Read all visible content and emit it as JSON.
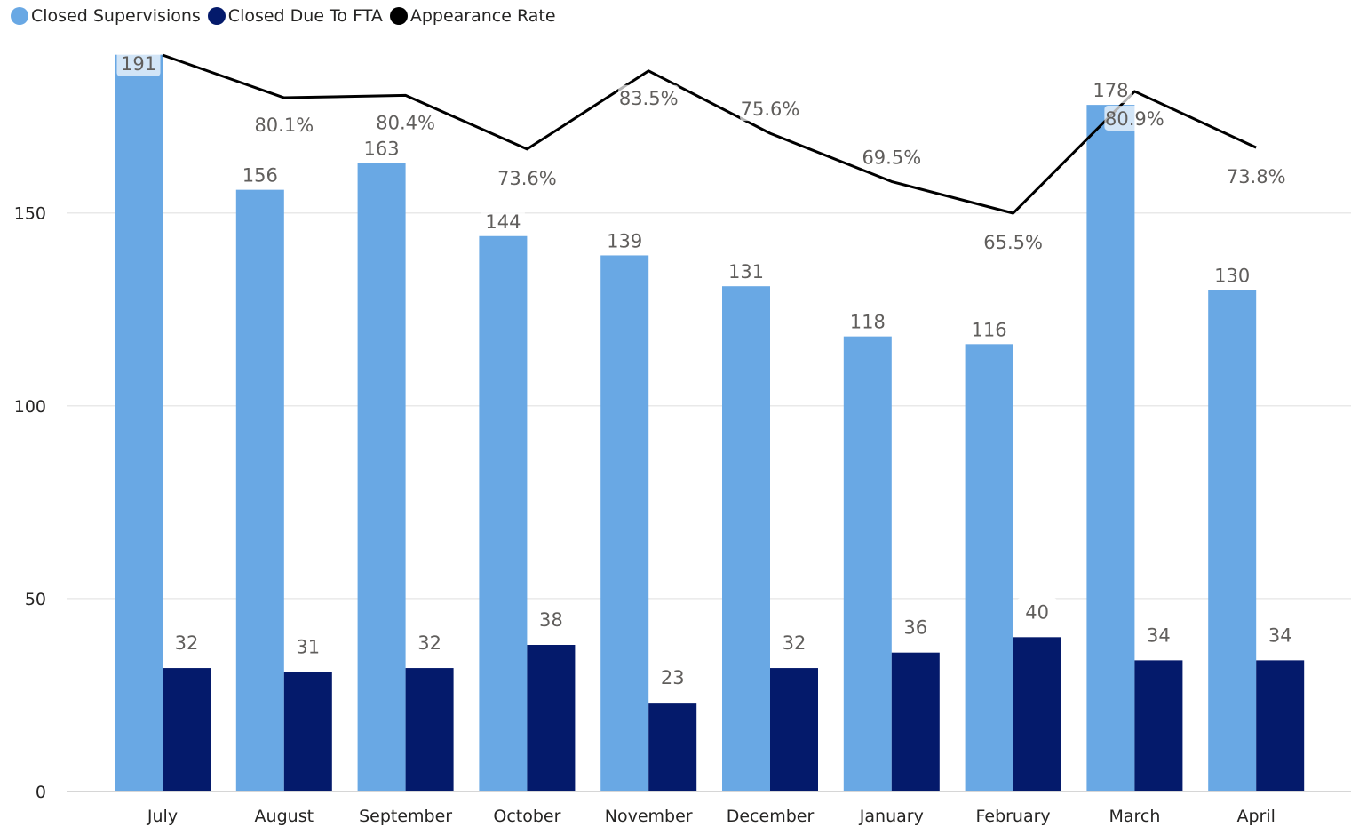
{
  "legend": [
    {
      "label": "Closed Supervisions",
      "color": "#69A8E4"
    },
    {
      "label": "Closed Due To FTA",
      "color": "#041A6B"
    },
    {
      "label": "Appearance Rate",
      "color": "#000000"
    }
  ],
  "chart_data": {
    "type": "bar",
    "categories": [
      "July",
      "August",
      "September",
      "October",
      "November",
      "December",
      "January",
      "February",
      "March",
      "April"
    ],
    "series": [
      {
        "name": "Closed Supervisions",
        "type": "bar",
        "color": "#69A8E4",
        "values": [
          191,
          156,
          163,
          144,
          139,
          131,
          118,
          116,
          178,
          130
        ]
      },
      {
        "name": "Closed Due To FTA",
        "type": "bar",
        "color": "#041A6B",
        "values": [
          32,
          31,
          32,
          38,
          23,
          32,
          36,
          40,
          34,
          34
        ]
      },
      {
        "name": "Appearance Rate",
        "type": "line",
        "color": "#000000",
        "axis": "secondary",
        "values": [
          0.855,
          0.801,
          0.804,
          0.736,
          0.835,
          0.756,
          0.695,
          0.655,
          0.809,
          0.738
        ],
        "labels": [
          "",
          "80.1%",
          "80.4%",
          "73.6%",
          "83.5%",
          "75.6%",
          "69.5%",
          "65.5%",
          "80.9%",
          "73.8%"
        ]
      }
    ],
    "yticks": [
      0,
      50,
      100,
      150
    ],
    "ylim": [
      0,
      191
    ],
    "y2lim": [
      0.45,
      0.855
    ],
    "grid": true,
    "legend_position": "top-left"
  }
}
